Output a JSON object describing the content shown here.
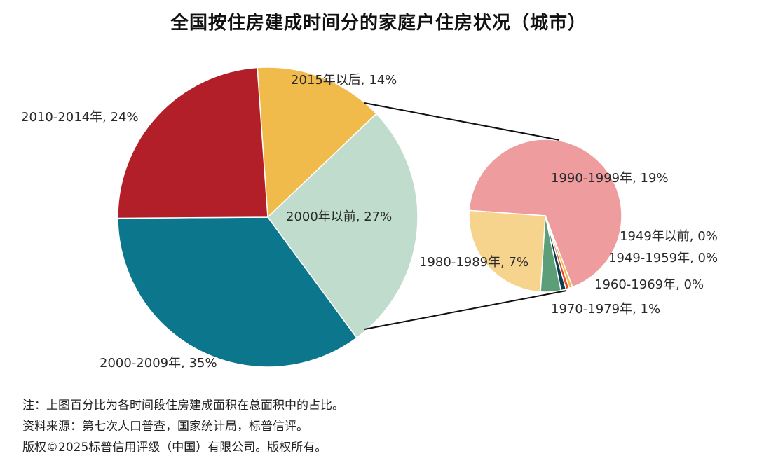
{
  "title": "全国按住房建成时间分的家庭户住房状况（城市）",
  "chart_data": [
    {
      "type": "pie",
      "slices": [
        {
          "label": "2015年以后, 14%",
          "value": 14,
          "color": "#f0bb4b"
        },
        {
          "label": "2000年以前, 27%",
          "value": 27,
          "color": "#bfdccc"
        },
        {
          "label": "2000-2009年, 35%",
          "value": 35,
          "color": "#0b768c"
        },
        {
          "label": "2010-2014年, 24%",
          "value": 24,
          "color": "#b31f28"
        }
      ]
    },
    {
      "type": "pie",
      "slices": [
        {
          "label": "1990-1999年, 19%",
          "value": 19,
          "color": "#ee9c9e"
        },
        {
          "label": "1949年以前, 0%",
          "value": 0.2,
          "color": "#f0bb4b"
        },
        {
          "label": "1949-1959年, 0%",
          "value": 0.2,
          "color": "#e8482e"
        },
        {
          "label": "1960-1969年, 0%",
          "value": 0.3,
          "color": "#0b3d4d"
        },
        {
          "label": "1970-1979年, 1%",
          "value": 1.2,
          "color": "#5b9e78"
        },
        {
          "label": "1980-1989年, 7%",
          "value": 7,
          "color": "#f6d48e"
        }
      ]
    }
  ],
  "notes": [
    "注：上图百分比为各时间段住房建成面积在总面积中的占比。",
    "资料来源：第七次人口普查，国家统计局，标普信评。",
    "版权©2025标普信用评级（中国）有限公司。版权所有。"
  ]
}
